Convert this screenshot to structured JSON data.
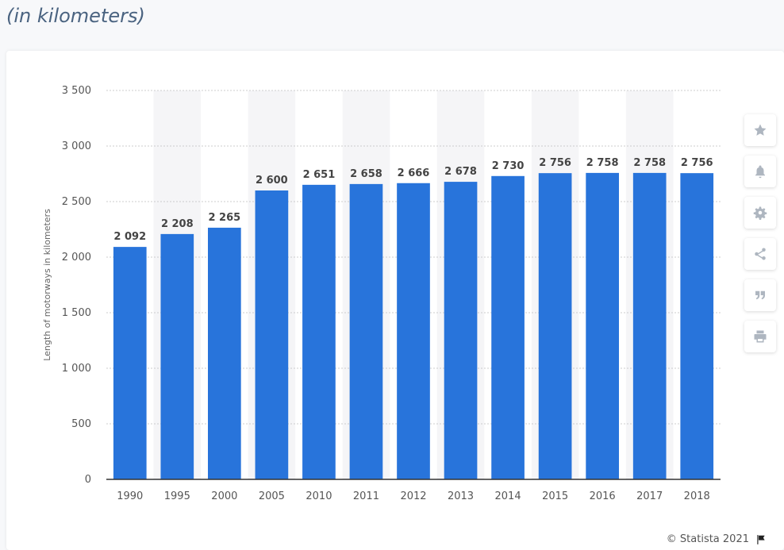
{
  "header": {
    "subtitle": "(in kilometers)"
  },
  "toolbar": {
    "buttons": [
      {
        "name": "favorite",
        "icon": "star-icon"
      },
      {
        "name": "notification",
        "icon": "bell-icon"
      },
      {
        "name": "settings",
        "icon": "gear-icon"
      },
      {
        "name": "share",
        "icon": "share-icon"
      },
      {
        "name": "cite",
        "icon": "quote-icon"
      },
      {
        "name": "print",
        "icon": "print-icon"
      }
    ]
  },
  "footer": {
    "copyright": "© Statista 2021"
  },
  "colors": {
    "bar": "#2874db",
    "band": "#f5f5f7",
    "grid": "#cccccc",
    "axis": "#333333"
  },
  "chart_data": {
    "type": "bar",
    "categories": [
      "1990",
      "1995",
      "2000",
      "2005",
      "2010",
      "2011",
      "2012",
      "2013",
      "2014",
      "2015",
      "2016",
      "2017",
      "2018"
    ],
    "values": [
      2092,
      2208,
      2265,
      2600,
      2651,
      2658,
      2666,
      2678,
      2730,
      2756,
      2758,
      2758,
      2756
    ],
    "value_labels": [
      "2 092",
      "2 208",
      "2 265",
      "2 600",
      "2 651",
      "2 658",
      "2 666",
      "2 678",
      "2 730",
      "2 756",
      "2 758",
      "2 758",
      "2 756"
    ],
    "ylabel": "Length of motorways in kilometers",
    "ylim": [
      0,
      3500
    ],
    "yticks": [
      0,
      500,
      1000,
      1500,
      2000,
      2500,
      3000,
      3500
    ],
    "ytick_labels": [
      "0",
      "500",
      "1 000",
      "1 500",
      "2 000",
      "2 500",
      "3 000",
      "3 500"
    ],
    "grid": true
  }
}
